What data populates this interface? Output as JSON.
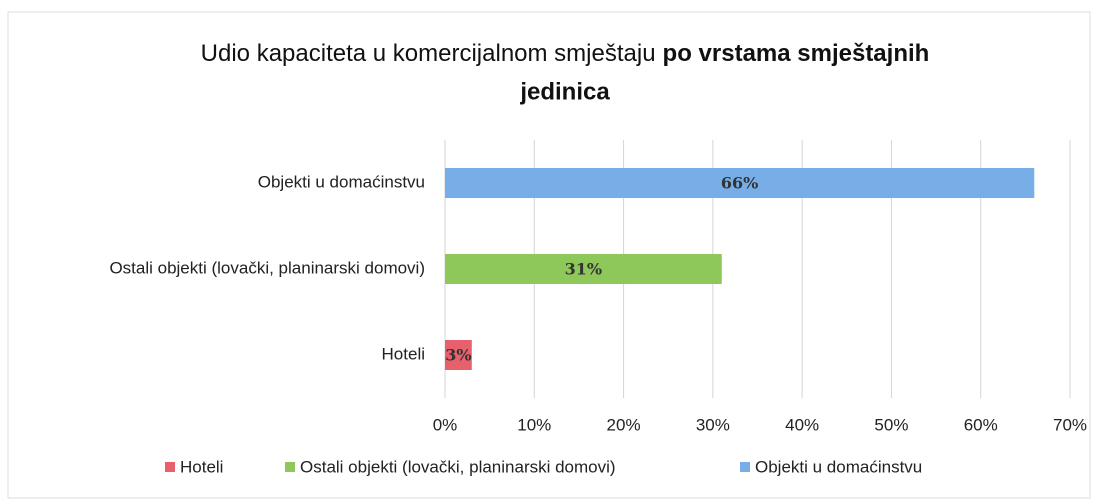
{
  "chart_data": {
    "type": "hbar",
    "title": [
      "Udio kapaciteta u komercijalnom smještaju",
      "po vrstama smještajnih",
      "jedinica"
    ],
    "categories": [
      "Objekti u domaćinstvu",
      "Ostali objekti (lovački, planinarski domovi)",
      "Hoteli"
    ],
    "series": [
      {
        "name": "Hoteli",
        "color": "#e8606b",
        "values": [
          null,
          null,
          3
        ],
        "value_labels": [
          null,
          null,
          "3%"
        ]
      },
      {
        "name": "Ostali objekti (lovački, planinarski domovi)",
        "color": "#8fc85a",
        "values": [
          null,
          31,
          null
        ],
        "value_labels": [
          null,
          "31%",
          null
        ]
      },
      {
        "name": "Objekti u domaćinstvu",
        "color": "#78aee8",
        "values": [
          66,
          null,
          null
        ],
        "value_labels": [
          "66%",
          null,
          null
        ]
      }
    ],
    "xlim": [
      0,
      70
    ],
    "xticks": [
      {
        "value": 0,
        "label": "0%"
      },
      {
        "value": 10,
        "label": "10%"
      },
      {
        "value": 20,
        "label": "20%"
      },
      {
        "value": 30,
        "label": "30%"
      },
      {
        "value": 40,
        "label": "40%"
      },
      {
        "value": 50,
        "label": "50%"
      },
      {
        "value": 60,
        "label": "60%"
      },
      {
        "value": 70,
        "label": "70%"
      }
    ],
    "grid": true,
    "legend": "bottom"
  }
}
